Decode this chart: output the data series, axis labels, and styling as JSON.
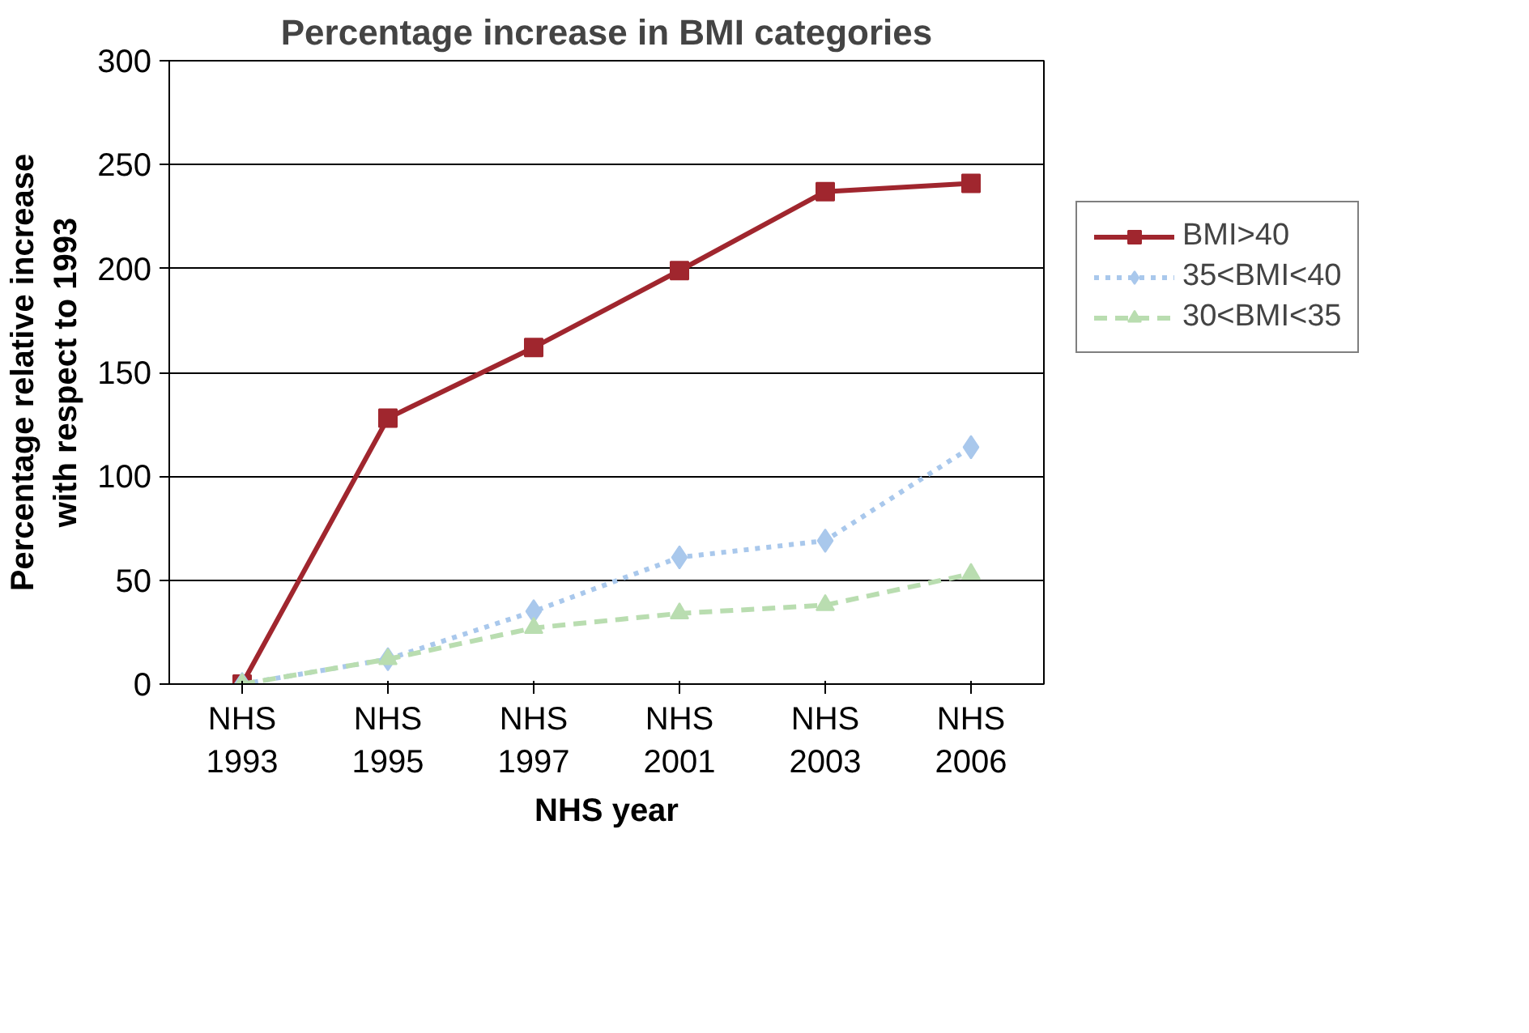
{
  "chart_data": {
    "type": "line",
    "title": "Percentage increase in BMI categories",
    "xlabel": "NHS year",
    "ylabel": "Percentage relative increase\nwith respect to 1993",
    "categories": [
      "NHS\n1993",
      "NHS\n1995",
      "NHS\n1997",
      "NHS\n2001",
      "NHS\n2003",
      "NHS\n2006"
    ],
    "series": [
      {
        "name": "BMI>40",
        "color": "#a0262e",
        "values": [
          0,
          128,
          162,
          199,
          237,
          241
        ],
        "marker": "square",
        "line_style": "solid"
      },
      {
        "name": "35<BMI<40",
        "color": "#a9c8ec",
        "values": [
          0,
          12,
          35,
          61,
          69,
          114
        ],
        "marker": "diamond",
        "line_style": "dotted"
      },
      {
        "name": "30<BMI<35",
        "color": "#b9ddb0",
        "values": [
          0,
          12,
          27,
          34,
          38,
          53
        ],
        "marker": "triangle",
        "line_style": "dashed"
      }
    ],
    "ylim": [
      0,
      300
    ],
    "yticks": [
      0,
      50,
      100,
      150,
      200,
      250,
      300
    ],
    "grid": "y",
    "legend": "right"
  }
}
